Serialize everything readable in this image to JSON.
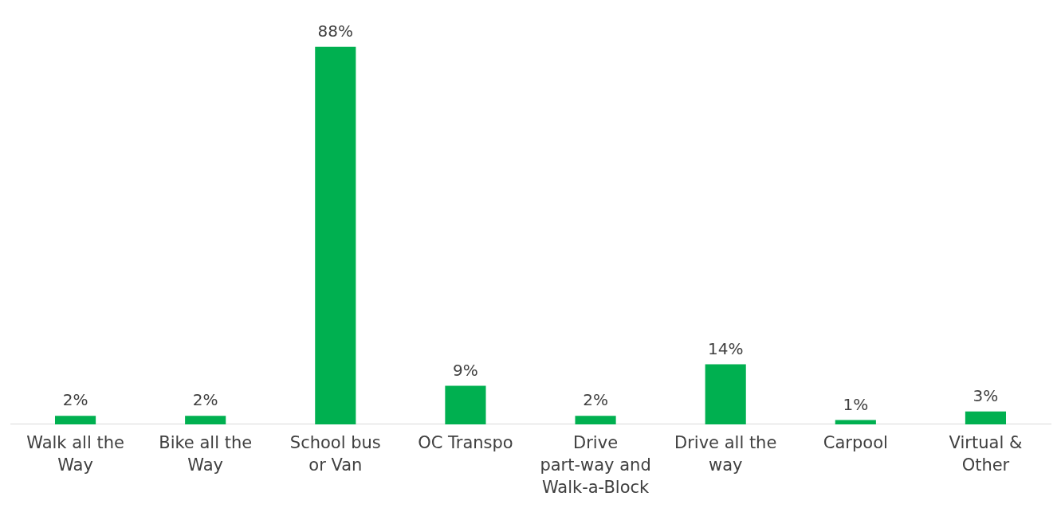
{
  "chart_data": {
    "type": "bar",
    "categories": [
      "Walk all the Way",
      "Bike all the Way",
      "School bus or Van",
      "OC Transpo",
      "Drive part-way and Walk-a-Block",
      "Drive all the way",
      "Carpool",
      "Virtual & Other"
    ],
    "values": [
      2,
      2,
      88,
      9,
      2,
      14,
      1,
      3
    ],
    "value_labels": [
      "2%",
      "2%",
      "88%",
      "9%",
      "2%",
      "14%",
      "1%",
      "3%"
    ],
    "color": "#00b050",
    "grid": false,
    "legend": false
  }
}
